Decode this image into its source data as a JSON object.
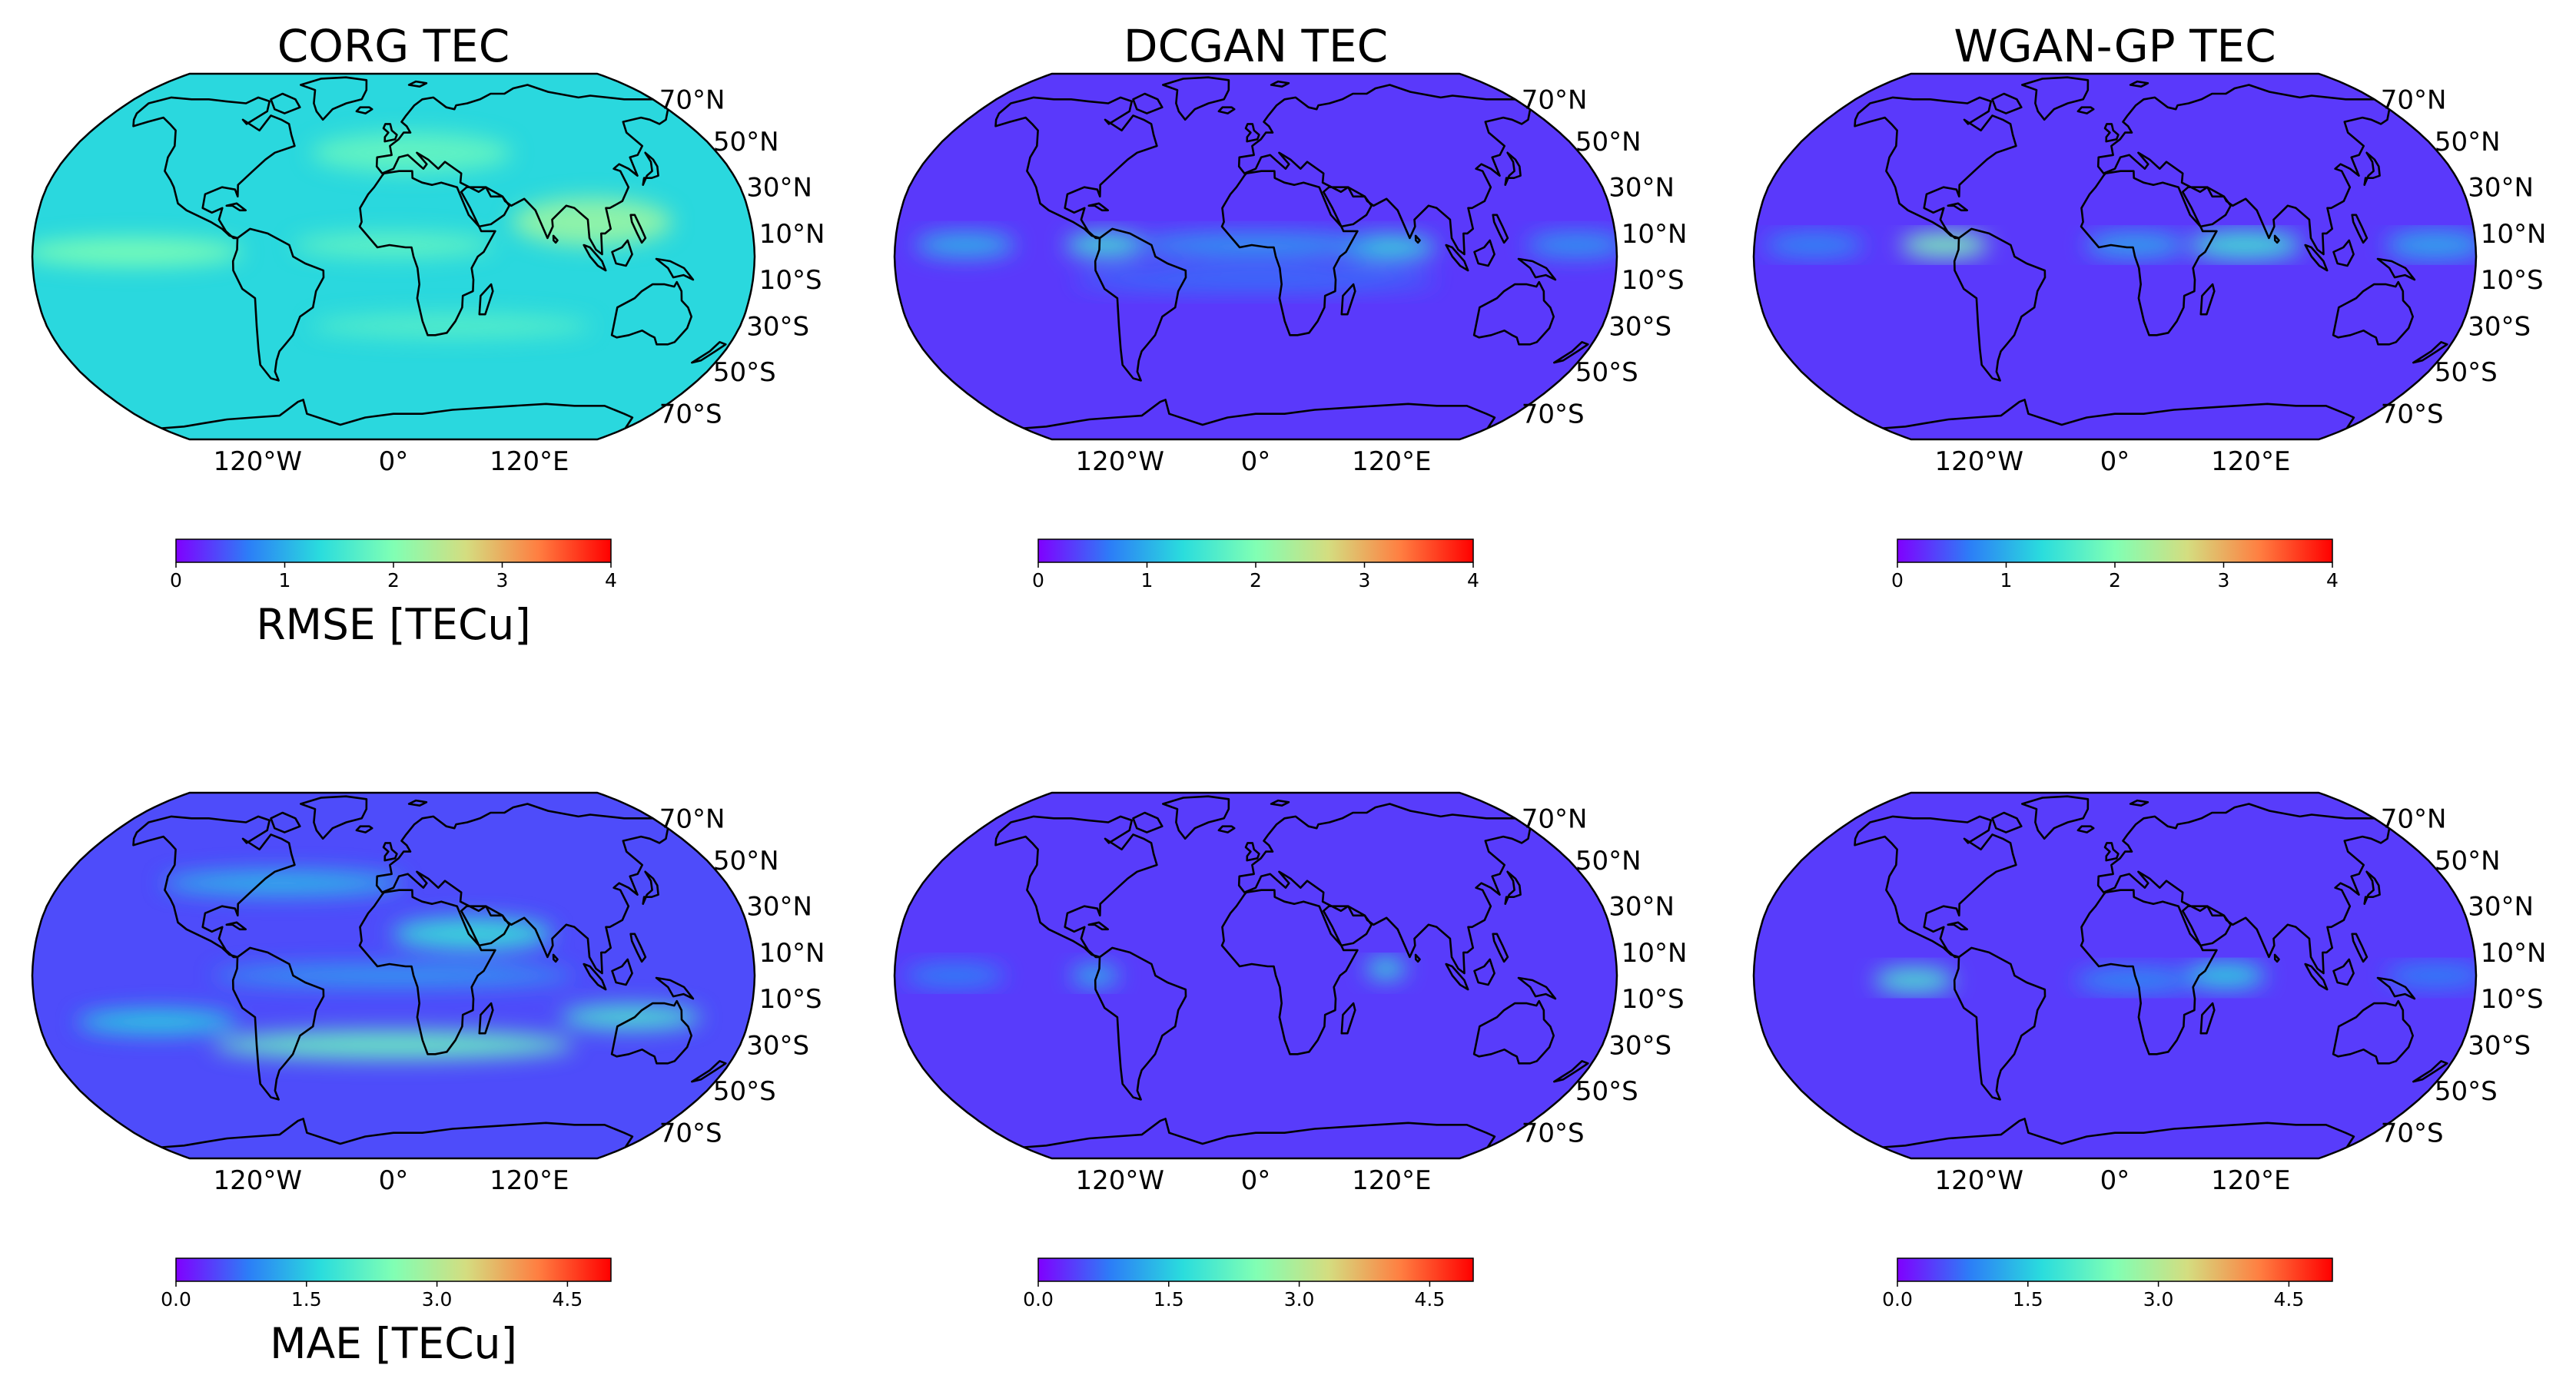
{
  "figure": {
    "column_titles": [
      "CORG TEC",
      "DCGAN TEC",
      "WGAN-GP TEC"
    ],
    "row_labels": [
      "RMSE [TECu]",
      "MAE [TECu]"
    ],
    "lat_ticks": [
      "70°N",
      "50°N",
      "30°N",
      "10°N",
      "10°S",
      "30°S",
      "50°S",
      "70°S"
    ],
    "lon_ticks": [
      "120°W",
      "0°",
      "120°E"
    ],
    "colormap": "rainbow",
    "colormap_stops": [
      "#8000ff",
      "#2c7ef7",
      "#2adddd",
      "#80ffb4",
      "#d4dd80",
      "#ff7e41",
      "#ff0000"
    ]
  },
  "chart_data": [
    {
      "type": "heatmap",
      "title": "CORG TEC",
      "metric": "RMSE [TECu]",
      "projection": "Robinson",
      "clim": [
        0,
        4
      ],
      "colorbar_ticks": [
        "0",
        "1",
        "2",
        "3",
        "4"
      ],
      "typical_value": 1.3,
      "features": [
        {
          "lon": -130,
          "lat": 2,
          "value": 2.0,
          "sx": 55,
          "sy": 7
        },
        {
          "lon": 100,
          "lat": 15,
          "value": 2.2,
          "sx": 40,
          "sy": 12
        },
        {
          "lon": 0,
          "lat": 5,
          "value": 1.8,
          "sx": 50,
          "sy": 6
        },
        {
          "lon": 30,
          "lat": -30,
          "value": 1.7,
          "sx": 70,
          "sy": 6
        },
        {
          "lon": 10,
          "lat": 45,
          "value": 1.8,
          "sx": 50,
          "sy": 10
        }
      ]
    },
    {
      "type": "heatmap",
      "title": "DCGAN TEC",
      "metric": "RMSE [TECu]",
      "projection": "Robinson",
      "clim": [
        0,
        4
      ],
      "colorbar_ticks": [
        "0",
        "1",
        "2",
        "3",
        "4"
      ],
      "typical_value": 0.3,
      "features": [
        {
          "lon": -75,
          "lat": 5,
          "value": 1.5,
          "sx": 20,
          "sy": 6
        },
        {
          "lon": 65,
          "lat": 4,
          "value": 1.4,
          "sx": 25,
          "sy": 6
        },
        {
          "lon": -145,
          "lat": 5,
          "value": 1.1,
          "sx": 25,
          "sy": 6
        },
        {
          "lon": 0,
          "lat": 5,
          "value": 0.9,
          "sx": 60,
          "sy": 6
        },
        {
          "lon": 160,
          "lat": 5,
          "value": 0.9,
          "sx": 25,
          "sy": 6
        },
        {
          "lon": 0,
          "lat": -10,
          "value": 0.6,
          "sx": 90,
          "sy": 6
        }
      ]
    },
    {
      "type": "heatmap",
      "title": "WGAN-GP TEC",
      "metric": "RMSE [TECu]",
      "projection": "Robinson",
      "clim": [
        0,
        4
      ],
      "colorbar_ticks": [
        "0",
        "1",
        "2",
        "3",
        "4"
      ],
      "typical_value": 0.3,
      "features": [
        {
          "lon": -85,
          "lat": 5,
          "value": 2.0,
          "sx": 22,
          "sy": 6
        },
        {
          "lon": 65,
          "lat": 5,
          "value": 1.5,
          "sx": 28,
          "sy": 7
        },
        {
          "lon": 160,
          "lat": 5,
          "value": 1.0,
          "sx": 25,
          "sy": 7
        },
        {
          "lon": -150,
          "lat": 5,
          "value": 0.8,
          "sx": 25,
          "sy": 6
        },
        {
          "lon": 10,
          "lat": 5,
          "value": 1.0,
          "sx": 25,
          "sy": 6
        }
      ]
    },
    {
      "type": "heatmap",
      "title": "CORG TEC",
      "metric": "MAE [TECu]",
      "projection": "Robinson",
      "clim": [
        0,
        5
      ],
      "colorbar_ticks": [
        "0.0",
        "1.5",
        "3.0",
        "4.5"
      ],
      "typical_value": 0.5,
      "features": [
        {
          "lon": 0,
          "lat": -30,
          "value": 2.3,
          "sx": 90,
          "sy": 7
        },
        {
          "lon": 120,
          "lat": -18,
          "value": 2.0,
          "sx": 35,
          "sy": 6
        },
        {
          "lon": -120,
          "lat": -20,
          "value": 1.6,
          "sx": 40,
          "sy": 6
        },
        {
          "lon": 40,
          "lat": 18,
          "value": 1.8,
          "sx": 40,
          "sy": 8
        },
        {
          "lon": -60,
          "lat": 40,
          "value": 1.4,
          "sx": 60,
          "sy": 6
        },
        {
          "lon": 0,
          "lat": 0,
          "value": 1.2,
          "sx": 90,
          "sy": 5
        }
      ]
    },
    {
      "type": "heatmap",
      "title": "DCGAN TEC",
      "metric": "MAE [TECu]",
      "projection": "Robinson",
      "clim": [
        0,
        5
      ],
      "colorbar_ticks": [
        "0.0",
        "1.5",
        "3.0",
        "4.5"
      ],
      "typical_value": 0.4,
      "features": [
        {
          "lon": 65,
          "lat": 3,
          "value": 1.8,
          "sx": 10,
          "sy": 5
        },
        {
          "lon": -80,
          "lat": 0,
          "value": 1.4,
          "sx": 12,
          "sy": 5
        },
        {
          "lon": -150,
          "lat": 0,
          "value": 0.9,
          "sx": 25,
          "sy": 6
        }
      ]
    },
    {
      "type": "heatmap",
      "title": "WGAN-GP TEC",
      "metric": "MAE [TECu]",
      "projection": "Robinson",
      "clim": [
        0,
        5
      ],
      "colorbar_ticks": [
        "0.0",
        "1.5",
        "3.0",
        "4.5"
      ],
      "typical_value": 0.4,
      "features": [
        {
          "lon": -100,
          "lat": -2,
          "value": 2.0,
          "sx": 20,
          "sy": 6
        },
        {
          "lon": 55,
          "lat": 0,
          "value": 1.7,
          "sx": 20,
          "sy": 6
        },
        {
          "lon": 10,
          "lat": -2,
          "value": 1.0,
          "sx": 30,
          "sy": 6
        },
        {
          "lon": 160,
          "lat": 0,
          "value": 0.9,
          "sx": 25,
          "sy": 6
        }
      ]
    }
  ]
}
